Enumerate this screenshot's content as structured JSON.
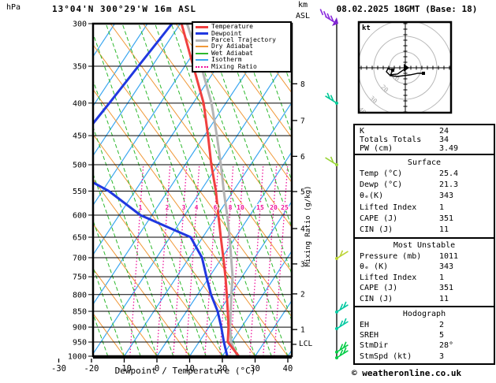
{
  "header": {
    "pressure_unit": "hPa",
    "title": "13°04'N 300°29'W 16m ASL",
    "altitude_unit_line1": "km",
    "altitude_unit_line2": "ASL",
    "datetime": "08.02.2025 18GMT (Base: 18)"
  },
  "axes": {
    "xlabel": "Dewpoint / Temperature (°C)",
    "mixing_ratio_axis_label": "Mixing Ratio (g/kg)",
    "lcl_label": "LCL",
    "pressure_ticks_hpa": [
      300,
      350,
      400,
      450,
      500,
      550,
      600,
      650,
      700,
      750,
      800,
      850,
      900,
      950,
      1000
    ],
    "temp_ticks_c": [
      -30,
      -20,
      -10,
      0,
      10,
      20,
      30,
      40
    ]
  },
  "legend": {
    "items": [
      {
        "label": "Temperature",
        "color": "#f04040",
        "thickness": 3,
        "style": "solid"
      },
      {
        "label": "Dewpoint",
        "color": "#2038e0",
        "thickness": 3,
        "style": "solid"
      },
      {
        "label": "Parcel Trajectory",
        "color": "#b4b4b4",
        "thickness": 3,
        "style": "solid"
      },
      {
        "label": "Dry Adiabat",
        "color": "#f09838",
        "thickness": 2,
        "style": "solid"
      },
      {
        "label": "Wet Adiabat",
        "color": "#2cb82c",
        "thickness": 2,
        "style": "solid"
      },
      {
        "label": "Isotherm",
        "color": "#3aa6f0",
        "thickness": 2,
        "style": "solid"
      },
      {
        "label": "Mixing Ratio",
        "color": "#ee1199",
        "thickness": 2,
        "style": "dotted"
      }
    ]
  },
  "chart_data": {
    "type": "line",
    "subtype": "skew-t_log-p_sounding",
    "title": "13°04'N 300°29'W 16m ASL",
    "xlabel": "Dewpoint / Temperature (°C)",
    "x_range_c": [
      -30,
      40
    ],
    "pressure_range_hpa": [
      300,
      1000
    ],
    "grid": {
      "isotherms_c": {
        "start": -110,
        "end": 40,
        "step": 10
      },
      "dry_adiabats_c": {
        "start": -20,
        "end": 130,
        "step": 10
      },
      "wet_adiabats_c": {
        "start": -30,
        "end": 80,
        "step": 5
      },
      "mixing_ratio_lines_g_per_kg": [
        1,
        2,
        3,
        4,
        6,
        8,
        10,
        15,
        20,
        25
      ]
    },
    "km_asl_ticks": [
      {
        "km": 8,
        "p_hpa": 373
      },
      {
        "km": 7,
        "p_hpa": 426
      },
      {
        "km": 6,
        "p_hpa": 485
      },
      {
        "km": 5,
        "p_hpa": 551
      },
      {
        "km": 4,
        "p_hpa": 630
      },
      {
        "km": 3,
        "p_hpa": 716
      },
      {
        "km": 2,
        "p_hpa": 798
      },
      {
        "km": 1,
        "p_hpa": 908
      }
    ],
    "lcl_p_hpa": 958,
    "series": [
      {
        "name": "Temperature",
        "color": "#f04040",
        "points": [
          [
            1000,
            25.0
          ],
          [
            950,
            18.8
          ],
          [
            900,
            16.0
          ],
          [
            850,
            12.6
          ],
          [
            800,
            8.9
          ],
          [
            750,
            4.9
          ],
          [
            700,
            0.4
          ],
          [
            650,
            -4.5
          ],
          [
            600,
            -9.7
          ],
          [
            550,
            -15.3
          ],
          [
            500,
            -22.0
          ],
          [
            450,
            -28.9
          ],
          [
            400,
            -36.8
          ],
          [
            350,
            -47.4
          ],
          [
            300,
            -59.6
          ]
        ]
      },
      {
        "name": "Dewpoint",
        "color": "#2038e0",
        "points": [
          [
            1000,
            21.5
          ],
          [
            950,
            17.6
          ],
          [
            900,
            13.8
          ],
          [
            850,
            9.5
          ],
          [
            800,
            4.1
          ],
          [
            750,
            -0.9
          ],
          [
            700,
            -6.1
          ],
          [
            650,
            -13.7
          ],
          [
            600,
            -33.5
          ],
          [
            550,
            -48.0
          ],
          [
            500,
            -68.1
          ],
          [
            450,
            -67.0
          ],
          [
            400,
            -65.6
          ],
          [
            350,
            -64.2
          ],
          [
            300,
            -62.5
          ]
        ]
      },
      {
        "name": "Parcel Trajectory",
        "color": "#b4b4b4",
        "points": [
          [
            1000,
            24.6
          ],
          [
            950,
            19.8
          ],
          [
            900,
            16.5
          ],
          [
            850,
            13.5
          ],
          [
            800,
            10.3
          ],
          [
            750,
            7.1
          ],
          [
            700,
            2.8
          ],
          [
            650,
            -1.8
          ],
          [
            600,
            -7.0
          ],
          [
            550,
            -12.9
          ],
          [
            500,
            -19.1
          ],
          [
            450,
            -26.2
          ],
          [
            400,
            -34.4
          ],
          [
            350,
            -45.0
          ],
          [
            300,
            -57.9
          ]
        ]
      }
    ]
  },
  "wind_barbs": [
    {
      "p_hpa": 300,
      "color": "#8a28dd",
      "side": "left",
      "ticks": 4,
      "dot": false,
      "flag": true
    },
    {
      "p_hpa": 400,
      "color": "#00c896",
      "side": "left",
      "ticks": 2,
      "dot": true,
      "flag": false
    },
    {
      "p_hpa": 500,
      "color": "#9ad438",
      "side": "left",
      "ticks": 1,
      "dot": true,
      "flag": false
    },
    {
      "p_hpa": 702,
      "color": "#bcd434",
      "side": "right",
      "ticks": 1,
      "dot": true,
      "flag": false
    },
    {
      "p_hpa": 852,
      "color": "#00c8a0",
      "side": "right",
      "ticks": 2,
      "dot": true,
      "flag": false
    },
    {
      "p_hpa": 905,
      "color": "#00c8a0",
      "side": "right",
      "ticks": 2,
      "dot": true,
      "flag": false
    },
    {
      "p_hpa": 985,
      "color": "#00cc44",
      "side": "right",
      "ticks": 2,
      "dot": true,
      "flag": false
    },
    {
      "p_hpa": 1010,
      "color": "#00cc44",
      "side": "right",
      "ticks": 2,
      "dot": true,
      "flag": false
    }
  ],
  "hodograph": {
    "unit_label": "kt",
    "rings_kt": [
      10,
      20,
      30,
      40
    ],
    "ring_color": "#b8b8b8",
    "trace_kt": [
      [
        0,
        -0.5
      ],
      [
        -5,
        -4
      ],
      [
        -10,
        -4.5
      ],
      [
        -12,
        -2.5
      ],
      [
        -11,
        -0.5
      ],
      [
        -8,
        -1.5
      ],
      [
        -9.5,
        -5
      ],
      [
        -5,
        -5.5
      ],
      [
        -1,
        -5
      ],
      [
        3,
        -4.5
      ],
      [
        8,
        -3.5
      ],
      [
        11.5,
        -3.5
      ]
    ],
    "markers_kt": [
      [
        -8,
        -1.5
      ],
      [
        11.5,
        -3.5
      ]
    ]
  },
  "stats_tables": [
    {
      "header": "",
      "rows": [
        [
          "K",
          "24"
        ],
        [
          "Totals Totals",
          "34"
        ],
        [
          "PW (cm)",
          "3.49"
        ]
      ]
    },
    {
      "header": "Surface",
      "rows": [
        [
          "Temp (°C)",
          "25.4"
        ],
        [
          "Dewp (°C)",
          "21.3"
        ],
        [
          "θₑ(K)",
          "343"
        ],
        [
          "Lifted Index",
          "1"
        ],
        [
          "CAPE (J)",
          "351"
        ],
        [
          "CIN (J)",
          "11"
        ]
      ]
    },
    {
      "header": "Most Unstable",
      "rows": [
        [
          "Pressure (mb)",
          "1011"
        ],
        [
          "θₑ (K)",
          "343"
        ],
        [
          "Lifted Index",
          "1"
        ],
        [
          "CAPE (J)",
          "351"
        ],
        [
          "CIN (J)",
          "11"
        ]
      ]
    },
    {
      "header": "Hodograph",
      "rows": [
        [
          "EH",
          "2"
        ],
        [
          "SREH",
          "5"
        ],
        [
          "StmDir",
          "28°"
        ],
        [
          "StmSpd (kt)",
          "3"
        ]
      ]
    }
  ],
  "copyright": "© weatheronline.co.uk"
}
